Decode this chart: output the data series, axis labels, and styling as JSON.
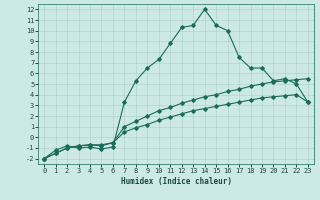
{
  "xlabel": "Humidex (Indice chaleur)",
  "xlim": [
    -0.5,
    23.5
  ],
  "ylim": [
    -2.5,
    12.5
  ],
  "xticks": [
    0,
    1,
    2,
    3,
    4,
    5,
    6,
    7,
    8,
    9,
    10,
    11,
    12,
    13,
    14,
    15,
    16,
    17,
    18,
    19,
    20,
    21,
    22,
    23
  ],
  "yticks": [
    -2,
    -1,
    0,
    1,
    2,
    3,
    4,
    5,
    6,
    7,
    8,
    9,
    10,
    11,
    12
  ],
  "background_color": "#cce9e5",
  "grid_color": "#aacfcb",
  "line_color": "#1a6b5a",
  "line1_x": [
    0,
    1,
    2,
    3,
    4,
    5,
    6,
    7,
    8,
    9,
    10,
    11,
    12,
    13,
    14,
    15,
    16,
    17,
    18,
    19,
    20,
    21,
    22,
    23
  ],
  "line1_y": [
    -2,
    -1.2,
    -0.8,
    -1.0,
    -0.9,
    -1.1,
    -0.9,
    3.3,
    5.3,
    6.5,
    7.3,
    8.8,
    10.3,
    10.5,
    12.0,
    10.5,
    10.0,
    7.5,
    6.5,
    6.5,
    5.3,
    5.5,
    5.0,
    3.3
  ],
  "line2_x": [
    0,
    1,
    2,
    3,
    4,
    5,
    6,
    7,
    8,
    9,
    10,
    11,
    12,
    13,
    14,
    15,
    16,
    17,
    18,
    19,
    20,
    21,
    22,
    23
  ],
  "line2_y": [
    -2,
    -1.5,
    -1.0,
    -0.8,
    -0.7,
    -0.8,
    -0.5,
    1.0,
    1.5,
    2.0,
    2.5,
    2.8,
    3.2,
    3.5,
    3.8,
    4.0,
    4.3,
    4.5,
    4.8,
    5.0,
    5.2,
    5.3,
    5.4,
    5.5
  ],
  "line3_x": [
    0,
    1,
    2,
    3,
    4,
    5,
    6,
    7,
    8,
    9,
    10,
    11,
    12,
    13,
    14,
    15,
    16,
    17,
    18,
    19,
    20,
    21,
    22,
    23
  ],
  "line3_y": [
    -2,
    -1.5,
    -1.0,
    -0.8,
    -0.7,
    -0.7,
    -0.5,
    0.5,
    0.9,
    1.2,
    1.6,
    1.9,
    2.2,
    2.5,
    2.7,
    2.9,
    3.1,
    3.3,
    3.5,
    3.7,
    3.8,
    3.9,
    4.0,
    3.3
  ],
  "marker": "D",
  "markersize": 1.8,
  "linewidth": 0.8,
  "tick_fontsize": 5.0,
  "xlabel_fontsize": 5.5
}
